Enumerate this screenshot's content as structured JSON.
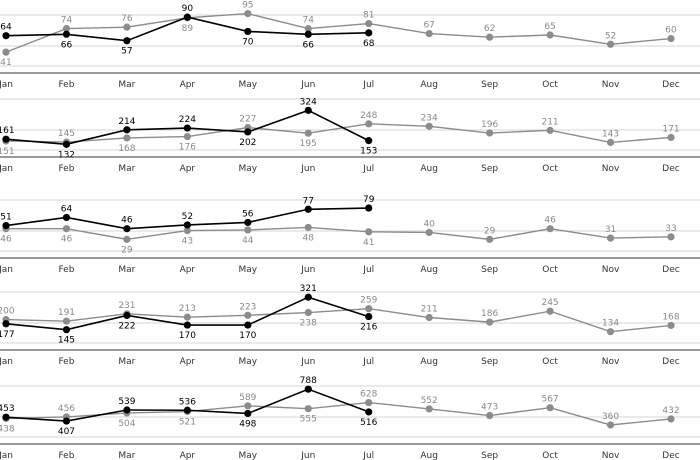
{
  "chart_data": {
    "type": "line",
    "categories": [
      "Jan",
      "Feb",
      "Mar",
      "Apr",
      "May",
      "Jun",
      "Jul",
      "Aug",
      "Sep",
      "Oct",
      "Nov",
      "Dec"
    ],
    "colors": {
      "current": "#000000",
      "previous": "#8c8c8c",
      "grid": "#d4d4d4"
    },
    "panels": [
      {
        "ylim": [
          30,
          100
        ],
        "series": [
          {
            "values": [
              64,
              66,
              57,
              90,
              70,
              66,
              68
            ]
          },
          {
            "values": [
              41,
              74,
              76,
              89,
              95,
              74,
              81,
              67,
              62,
              65,
              52,
              60
            ]
          }
        ]
      },
      {
        "ylim": [
          100,
          360
        ],
        "series": [
          {
            "values": [
              161,
              132,
              214,
              224,
              202,
              324,
              153
            ]
          },
          {
            "values": [
              151,
              145,
              168,
              176,
              227,
              195,
              248,
              234,
              196,
              211,
              143,
              171
            ]
          }
        ]
      },
      {
        "ylim": [
          20,
          95
        ],
        "series": [
          {
            "values": [
              51,
              64,
              46,
              52,
              56,
              77,
              79
            ]
          },
          {
            "values": [
              46,
              46,
              29,
              43,
              44,
              48,
              41,
              40,
              29,
              46,
              31,
              33
            ]
          }
        ]
      },
      {
        "ylim": [
          100,
          360
        ],
        "series": [
          {
            "values": [
              177,
              145,
              222,
              170,
              170,
              321,
              216
            ]
          },
          {
            "values": [
              200,
              191,
              231,
              213,
              223,
              238,
              259,
              211,
              186,
              245,
              134,
              168
            ]
          }
        ]
      },
      {
        "ylim": [
          300,
          850
        ],
        "series": [
          {
            "values": [
              453,
              407,
              539,
              536,
              498,
              788,
              516
            ]
          },
          {
            "values": [
              438,
              456,
              504,
              521,
              589,
              555,
              628,
              552,
              473,
              567,
              360,
              432
            ]
          }
        ]
      }
    ]
  }
}
